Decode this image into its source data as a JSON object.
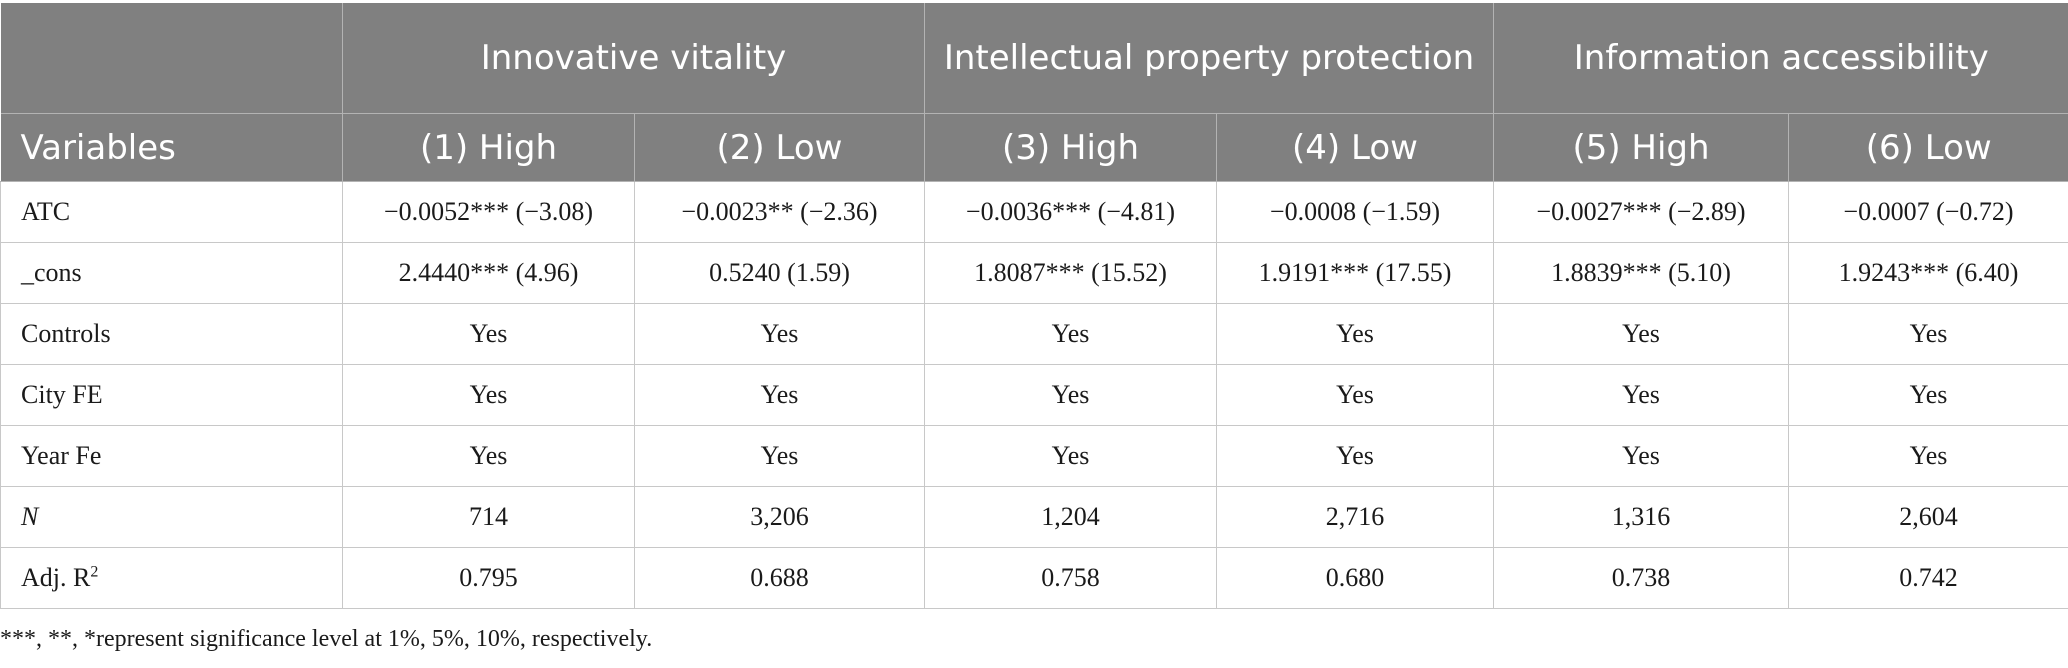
{
  "table": {
    "group_headers": [
      "",
      "Innovative vitality",
      "Intellectual property protection",
      "Information accessibility"
    ],
    "column_headers": [
      "Variables",
      "(1) High",
      "(2) Low",
      "(3) High",
      "(4) Low",
      "(5) High",
      "(6) Low"
    ],
    "rows": [
      {
        "label": "ATC",
        "values": [
          "−0.0052*** (−3.08)",
          "−0.0023** (−2.36)",
          "−0.0036*** (−4.81)",
          "−0.0008 (−1.59)",
          "−0.0027*** (−2.89)",
          "−0.0007 (−0.72)"
        ]
      },
      {
        "label": "_cons",
        "values": [
          "2.4440*** (4.96)",
          "0.5240 (1.59)",
          "1.8087*** (15.52)",
          "1.9191*** (17.55)",
          "1.8839*** (5.10)",
          "1.9243*** (6.40)"
        ]
      },
      {
        "label": "Controls",
        "values": [
          "Yes",
          "Yes",
          "Yes",
          "Yes",
          "Yes",
          "Yes"
        ]
      },
      {
        "label": "City FE",
        "values": [
          "Yes",
          "Yes",
          "Yes",
          "Yes",
          "Yes",
          "Yes"
        ]
      },
      {
        "label": "Year Fe",
        "values": [
          "Yes",
          "Yes",
          "Yes",
          "Yes",
          "Yes",
          "Yes"
        ]
      },
      {
        "label": "N",
        "values": [
          "714",
          "3,206",
          "1,204",
          "2,716",
          "1,316",
          "2,604"
        ]
      },
      {
        "label": "Adj. R",
        "label_sup": "2",
        "values": [
          "0.795",
          "0.688",
          "0.758",
          "0.680",
          "0.738",
          "0.742"
        ]
      }
    ]
  },
  "footnote": "***, **, *represent significance level at 1%, 5%, 10%, respectively.",
  "colors": {
    "header_bg": "#808080",
    "header_text": "#ffffff",
    "grid": "#c8c8c8"
  }
}
